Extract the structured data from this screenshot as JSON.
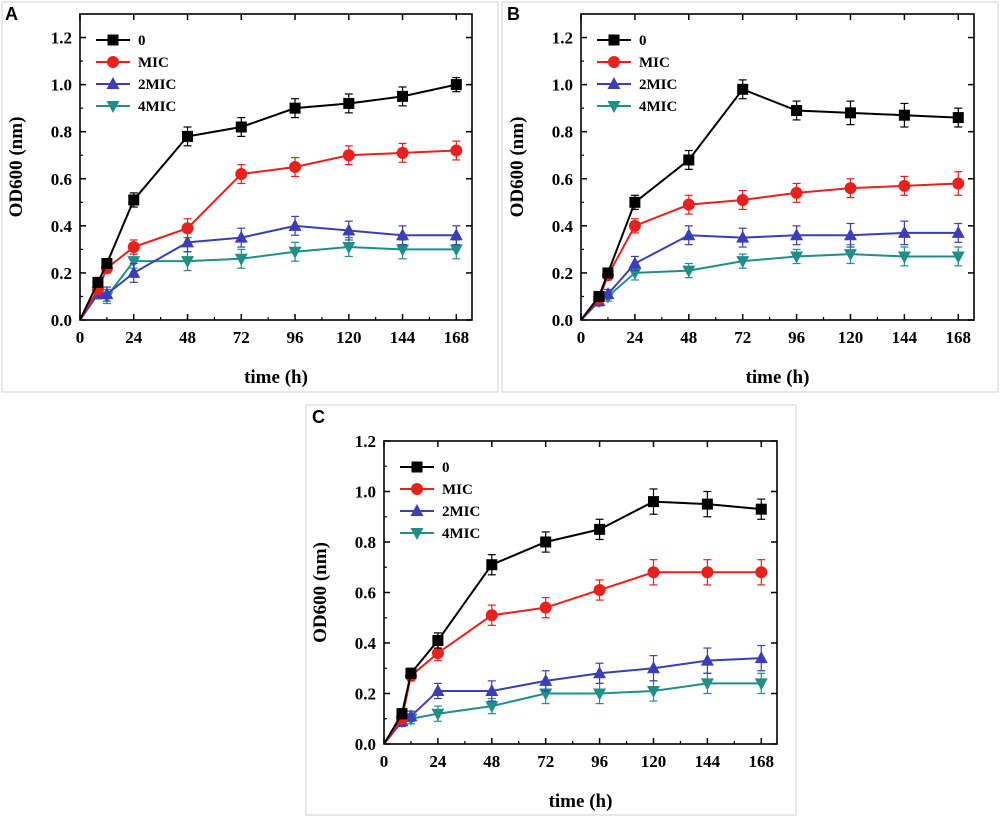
{
  "chart_data": [
    {
      "type": "line",
      "panel": "A",
      "xlabel": "time (h)",
      "ylabel": "OD600 (nm)",
      "xlim": [
        0,
        175
      ],
      "ylim": [
        0,
        1.3
      ],
      "xticks": [
        0,
        24,
        48,
        72,
        96,
        120,
        144,
        168
      ],
      "yticks": [
        0.0,
        0.2,
        0.4,
        0.6,
        0.8,
        1.0,
        1.2
      ],
      "xtick_labels": [
        "0",
        "24",
        "48",
        "72",
        "96",
        "120",
        "144",
        "168"
      ],
      "ytick_labels": [
        "0.0",
        "0.2",
        "0.4",
        "0.6",
        "0.8",
        "1.0",
        "1.2"
      ],
      "legend_position": "top-left",
      "x": [
        0,
        8,
        12,
        24,
        48,
        72,
        96,
        120,
        144,
        168
      ],
      "series": [
        {
          "name": "0",
          "color": "#000000",
          "marker": "square",
          "values": [
            0,
            0.16,
            0.24,
            0.51,
            0.78,
            0.82,
            0.9,
            0.92,
            0.95,
            1.0
          ],
          "errors": [
            0,
            0.02,
            0.02,
            0.03,
            0.04,
            0.04,
            0.04,
            0.04,
            0.04,
            0.03
          ]
        },
        {
          "name": "MIC",
          "color": "#e8201e",
          "marker": "circle",
          "values": [
            0,
            0.13,
            0.22,
            0.31,
            0.39,
            0.62,
            0.65,
            0.7,
            0.71,
            0.72
          ],
          "errors": [
            0,
            0.02,
            0.02,
            0.03,
            0.04,
            0.04,
            0.04,
            0.04,
            0.04,
            0.04
          ]
        },
        {
          "name": "2MIC",
          "color": "#3a3fb8",
          "marker": "triangle-up",
          "values": [
            0,
            0.11,
            0.11,
            0.2,
            0.33,
            0.35,
            0.4,
            0.38,
            0.36,
            0.36
          ],
          "errors": [
            0,
            0.02,
            0.03,
            0.04,
            0.04,
            0.04,
            0.04,
            0.04,
            0.04,
            0.04
          ]
        },
        {
          "name": "4MIC",
          "color": "#1f8f88",
          "marker": "triangle-down",
          "values": [
            0,
            0.12,
            0.1,
            0.25,
            0.25,
            0.26,
            0.29,
            0.31,
            0.3,
            0.3
          ],
          "errors": [
            0,
            0.02,
            0.03,
            0.03,
            0.04,
            0.04,
            0.04,
            0.04,
            0.04,
            0.04
          ]
        }
      ]
    },
    {
      "type": "line",
      "panel": "B",
      "xlabel": "time (h)",
      "ylabel": "OD600 (nm)",
      "xlim": [
        0,
        175
      ],
      "ylim": [
        0,
        1.3
      ],
      "xticks": [
        0,
        24,
        48,
        72,
        96,
        120,
        144,
        168
      ],
      "yticks": [
        0.0,
        0.2,
        0.4,
        0.6,
        0.8,
        1.0,
        1.2
      ],
      "xtick_labels": [
        "0",
        "24",
        "48",
        "72",
        "96",
        "120",
        "144",
        "168"
      ],
      "ytick_labels": [
        "0.0",
        "0.2",
        "0.4",
        "0.6",
        "0.8",
        "1.0",
        "1.2"
      ],
      "legend_position": "top-left",
      "x": [
        0,
        8,
        12,
        24,
        48,
        72,
        96,
        120,
        144,
        168
      ],
      "series": [
        {
          "name": "0",
          "color": "#000000",
          "marker": "square",
          "values": [
            0,
            0.1,
            0.2,
            0.5,
            0.68,
            0.98,
            0.89,
            0.88,
            0.87,
            0.86
          ],
          "errors": [
            0,
            0.02,
            0.02,
            0.03,
            0.04,
            0.04,
            0.04,
            0.05,
            0.05,
            0.04
          ]
        },
        {
          "name": "MIC",
          "color": "#e8201e",
          "marker": "circle",
          "values": [
            0,
            0.09,
            0.19,
            0.4,
            0.49,
            0.51,
            0.54,
            0.56,
            0.57,
            0.58
          ],
          "errors": [
            0,
            0.02,
            0.02,
            0.03,
            0.04,
            0.04,
            0.04,
            0.04,
            0.04,
            0.05
          ]
        },
        {
          "name": "2MIC",
          "color": "#3a3fb8",
          "marker": "triangle-up",
          "values": [
            0,
            0.08,
            0.11,
            0.24,
            0.36,
            0.35,
            0.36,
            0.36,
            0.37,
            0.37
          ],
          "errors": [
            0,
            0.02,
            0.02,
            0.03,
            0.04,
            0.04,
            0.04,
            0.05,
            0.05,
            0.04
          ]
        },
        {
          "name": "4MIC",
          "color": "#1f8f88",
          "marker": "triangle-down",
          "values": [
            0,
            0.08,
            0.1,
            0.2,
            0.21,
            0.25,
            0.27,
            0.28,
            0.27,
            0.27
          ],
          "errors": [
            0,
            0.02,
            0.02,
            0.03,
            0.03,
            0.03,
            0.03,
            0.04,
            0.04,
            0.04
          ]
        }
      ]
    },
    {
      "type": "line",
      "panel": "C",
      "xlabel": "time (h)",
      "ylabel": "OD600 (nm)",
      "xlim": [
        0,
        175
      ],
      "ylim": [
        0,
        1.2
      ],
      "xticks": [
        0,
        24,
        48,
        72,
        96,
        120,
        144,
        168
      ],
      "yticks": [
        0.0,
        0.2,
        0.4,
        0.6,
        0.8,
        1.0,
        1.2
      ],
      "xtick_labels": [
        "0",
        "24",
        "48",
        "72",
        "96",
        "120",
        "144",
        "168"
      ],
      "ytick_labels": [
        "0.0",
        "0.2",
        "0.4",
        "0.6",
        "0.8",
        "1.0",
        "1.2"
      ],
      "legend_position": "top-left",
      "x": [
        0,
        8,
        12,
        24,
        48,
        72,
        96,
        120,
        144,
        168
      ],
      "series": [
        {
          "name": "0",
          "color": "#000000",
          "marker": "square",
          "values": [
            0,
            0.12,
            0.28,
            0.41,
            0.71,
            0.8,
            0.85,
            0.96,
            0.95,
            0.93
          ],
          "errors": [
            0,
            0.02,
            0.02,
            0.03,
            0.04,
            0.04,
            0.04,
            0.05,
            0.05,
            0.04
          ]
        },
        {
          "name": "MIC",
          "color": "#e8201e",
          "marker": "circle",
          "values": [
            0,
            0.1,
            0.27,
            0.36,
            0.51,
            0.54,
            0.61,
            0.68,
            0.68,
            0.68
          ],
          "errors": [
            0,
            0.02,
            0.02,
            0.03,
            0.04,
            0.04,
            0.04,
            0.05,
            0.05,
            0.05
          ]
        },
        {
          "name": "2MIC",
          "color": "#3a3fb8",
          "marker": "triangle-up",
          "values": [
            0,
            0.09,
            0.11,
            0.21,
            0.21,
            0.25,
            0.28,
            0.3,
            0.33,
            0.34
          ],
          "errors": [
            0,
            0.02,
            0.02,
            0.03,
            0.04,
            0.04,
            0.04,
            0.05,
            0.05,
            0.05
          ]
        },
        {
          "name": "4MIC",
          "color": "#1f8f88",
          "marker": "triangle-down",
          "values": [
            0,
            0.09,
            0.1,
            0.12,
            0.15,
            0.2,
            0.2,
            0.21,
            0.24,
            0.24
          ],
          "errors": [
            0,
            0.02,
            0.02,
            0.03,
            0.03,
            0.04,
            0.04,
            0.04,
            0.04,
            0.04
          ]
        }
      ]
    }
  ]
}
